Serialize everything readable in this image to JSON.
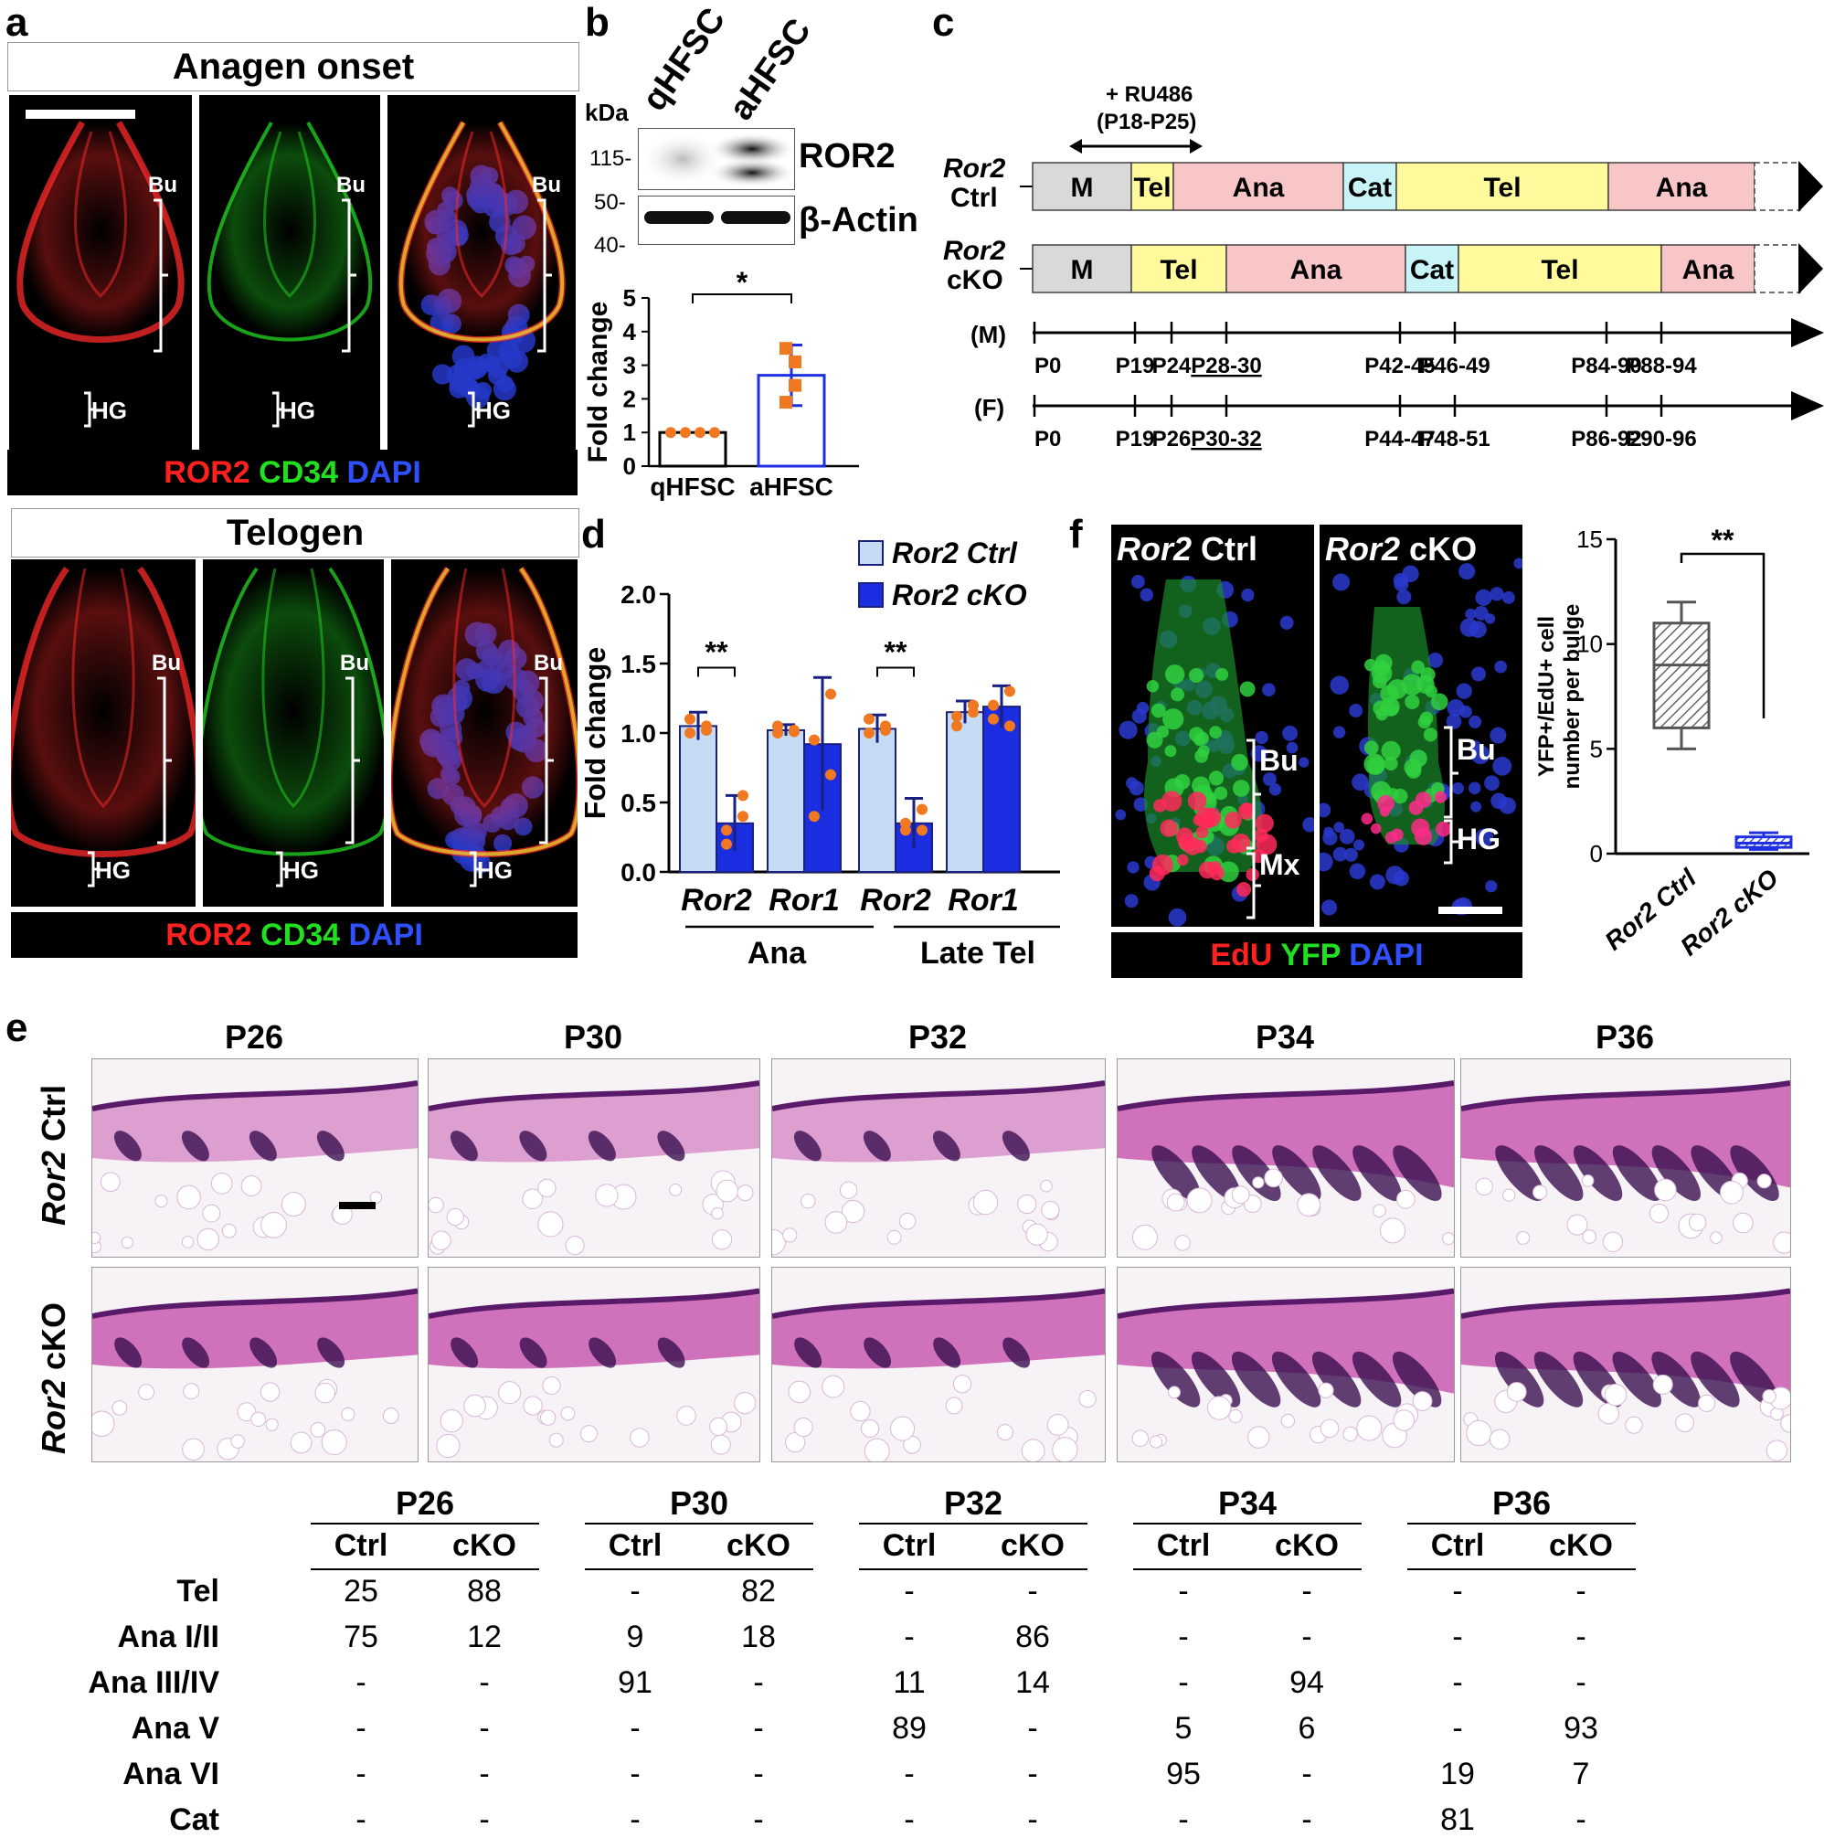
{
  "panels": {
    "a": "a",
    "b": "b",
    "c": "c",
    "d": "d",
    "e": "e",
    "f": "f"
  },
  "panel_a": {
    "anagen_title": "Anagen onset",
    "telogen_title": "Telogen",
    "bu": "Bu",
    "hg": "HG",
    "legend": {
      "ror2": "ROR2",
      "cd34": "CD34",
      "dapi": "DAPI"
    }
  },
  "panel_b": {
    "lane1": "qHFSC",
    "lane2": "aHFSC",
    "kda": "kDa",
    "mw": [
      "115-",
      "50-",
      "40-"
    ],
    "band1": "ROR2",
    "band2": "β-Actin",
    "sig": "*"
  },
  "panel_c": {
    "ru486_line1": "+ RU486",
    "ru486_line2": "(P18-P25)",
    "ctrl_gene": "Ror2",
    "ctrl_label": "Ctrl",
    "cko_gene": "Ror2",
    "cko_label": "cKO",
    "ctrl_segments": [
      "M",
      "Tel",
      "Ana",
      "Cat",
      "Tel",
      "Ana"
    ],
    "cko_segments": [
      "M",
      "Tel",
      "Ana",
      "Cat",
      "Tel",
      "Ana"
    ],
    "male": "(M)",
    "female": "(F)",
    "male_ticks": [
      "P0",
      "P19",
      "P24",
      "P28-30",
      "P42-45",
      "P46-49",
      "P84-90",
      "P88-94"
    ],
    "female_ticks": [
      "P0",
      "P19",
      "P26",
      "P30-32",
      "P44-47",
      "P48-51",
      "P86-92",
      "P90-96"
    ],
    "colors": {
      "M": "#d9d9d9",
      "Tel": "#fffa9c",
      "Ana": "#f9c6c8",
      "Cat": "#c8f4f8"
    }
  },
  "panel_f": {
    "ctrl_gene": "Ror2",
    "ctrl_label": "Ctrl",
    "cko_gene": "Ror2",
    "cko_label": "cKO",
    "bu": "Bu",
    "mx": "Mx",
    "hg": "HG",
    "legend": {
      "edu": "EdU",
      "yfp": "YFP",
      "dapi": "DAPI"
    },
    "sig": "**"
  },
  "panel_e": {
    "timepoints": [
      "P26",
      "P30",
      "P32",
      "P34",
      "P36"
    ],
    "row1_gene": "Ror2",
    "row1_label": "Ctrl",
    "row2_gene": "Ror2",
    "row2_label": "cKO",
    "table": {
      "groups": [
        "P26",
        "P30",
        "P32",
        "P34",
        "P36"
      ],
      "subheads": [
        "Ctrl",
        "cKO"
      ],
      "rows": [
        {
          "label": "Tel",
          "values": [
            "25",
            "88",
            "-",
            "82",
            "-",
            "-",
            "-",
            "-",
            "-",
            "-"
          ]
        },
        {
          "label": "Ana I/II",
          "values": [
            "75",
            "12",
            "9",
            "18",
            "-",
            "86",
            "-",
            "-",
            "-",
            "-"
          ]
        },
        {
          "label": "Ana III/IV",
          "values": [
            "-",
            "-",
            "91",
            "-",
            "11",
            "14",
            "-",
            "94",
            "-",
            "-"
          ]
        },
        {
          "label": "Ana V",
          "values": [
            "-",
            "-",
            "-",
            "-",
            "89",
            "-",
            "5",
            "6",
            "-",
            "93"
          ]
        },
        {
          "label": "Ana VI",
          "values": [
            "-",
            "-",
            "-",
            "-",
            "-",
            "-",
            "95",
            "-",
            "19",
            "7"
          ]
        },
        {
          "label": "Cat",
          "values": [
            "-",
            "-",
            "-",
            "-",
            "-",
            "-",
            "-",
            "-",
            "81",
            "-"
          ]
        }
      ]
    }
  },
  "chart_data": [
    {
      "id": "b",
      "type": "bar",
      "categories": [
        "qHFSC",
        "aHFSC"
      ],
      "values": [
        1.0,
        2.7
      ],
      "error": [
        0.0,
        0.9
      ],
      "points": [
        [
          1,
          1,
          1,
          1
        ],
        [
          3.5,
          2.4,
          1.9,
          3.1
        ]
      ],
      "ylabel": "Fold change",
      "ylim": [
        0,
        5
      ],
      "yticks": [
        "0",
        "1",
        "2",
        "3",
        "4",
        "5"
      ],
      "colors": {
        "qHFSC": "#000000",
        "aHFSC": "#1f2fe0",
        "points_q": "#f07820",
        "points_a": "#f07820"
      },
      "annotation": "*"
    },
    {
      "id": "d",
      "type": "bar",
      "categories": [
        "Ror2",
        "Ror1",
        "Ror2",
        "Ror1"
      ],
      "groups": [
        "Ana",
        "Late Tel"
      ],
      "series": [
        {
          "name": "Ror2 Ctrl",
          "values": [
            1.05,
            1.02,
            1.03,
            1.15
          ],
          "error": [
            0.1,
            0.04,
            0.1,
            0.08
          ],
          "points": [
            [
              1.0,
              1.05,
              1.1,
              1.02
            ],
            [
              1.0,
              1.02,
              1.05,
              1.01
            ],
            [
              1.0,
              1.05,
              1.1,
              1.02
            ],
            [
              1.05,
              1.2,
              1.12,
              1.15
            ]
          ]
        },
        {
          "name": "Ror2 cKO",
          "values": [
            0.35,
            0.92,
            0.35,
            1.19
          ],
          "error": [
            0.2,
            0.48,
            0.18,
            0.15
          ],
          "points": [
            [
              0.3,
              0.4,
              0.2,
              0.55
            ],
            [
              0.4,
              0.7,
              0.95,
              1.28
            ],
            [
              0.3,
              0.45,
              0.35,
              0.3
            ],
            [
              1.1,
              1.3,
              1.2,
              1.05
            ]
          ]
        }
      ],
      "ylabel": "Fold change",
      "ylim": [
        0,
        2.0
      ],
      "yticks": [
        "0.0",
        "0.5",
        "1.0",
        "1.5",
        "2.0"
      ],
      "annotations": [
        "**",
        "**"
      ],
      "colors": {
        "Ror2 Ctrl": "#c6dcf4",
        "Ror2 cKO": "#1a2de0",
        "points": "#f07820"
      }
    },
    {
      "id": "f",
      "type": "box",
      "categories": [
        "Ror2 Ctrl",
        "Ror2 cKO"
      ],
      "boxes": [
        {
          "min": 5,
          "q1": 6,
          "median": 9,
          "q3": 11,
          "max": 12
        },
        {
          "min": 0.2,
          "q1": 0.3,
          "median": 0.5,
          "q3": 0.8,
          "max": 1.0
        }
      ],
      "ylabel_line1": "YFP+/EdU+ cell",
      "ylabel_line2": "number per bulge",
      "ylim": [
        0,
        15
      ],
      "yticks": [
        "0",
        "5",
        "10",
        "15"
      ],
      "annotation": "**",
      "colors": {
        "Ror2 Ctrl": "#555555",
        "Ror2 cKO": "#2030e0"
      }
    }
  ]
}
